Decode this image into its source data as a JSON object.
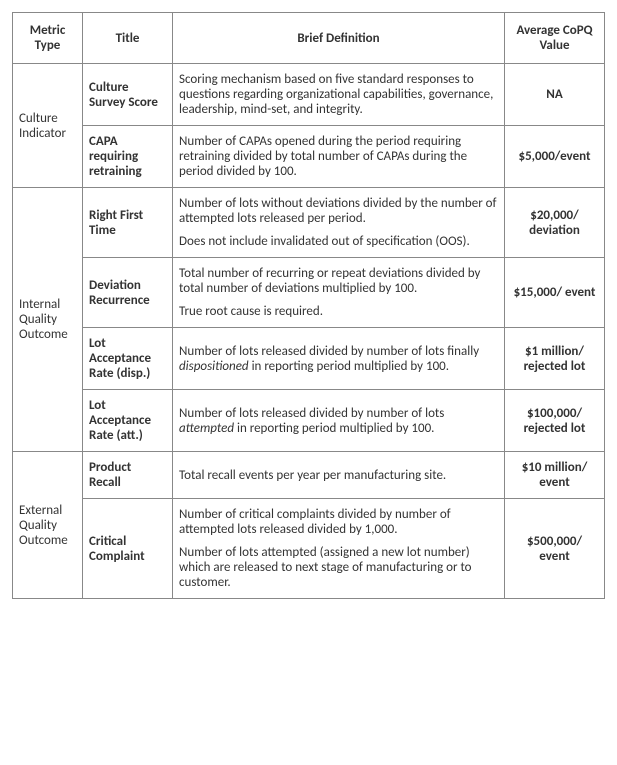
{
  "columns": {
    "metric_type": "Metric Type",
    "title": "Title",
    "brief_definition": "Brief Definition",
    "avg_copq": "Average CoPQ Value"
  },
  "groups": [
    {
      "metric_type": "Culture Indicator",
      "rows": [
        {
          "title": "Culture Survey Score",
          "definition": [
            "Scoring mechanism based on five standard responses to questions regarding organizational capabilities, governance, leadership, mind-set, and integrity."
          ],
          "value": "NA"
        },
        {
          "title": "CAPA requiring retraining",
          "definition": [
            "Number of CAPAs opened during the period requiring retraining divided by total number of CAPAs during the period divided by 100."
          ],
          "value": "$5,000/event"
        }
      ]
    },
    {
      "metric_type": "Internal Quality Outcome",
      "rows": [
        {
          "title": "Right First Time",
          "definition": [
            "Number of lots without deviations divided by the number of attempted lots released per period.",
            "Does not include invalidated out of specification (OOS)."
          ],
          "value": "$20,000/ deviation"
        },
        {
          "title": "Deviation Recurrence",
          "definition": [
            "Total number of recurring or repeat deviations divided by total number of deviations multiplied by 100.",
            "True root cause is required."
          ],
          "value": "$15,000/ event"
        },
        {
          "title": "Lot Acceptance Rate (disp.)",
          "definition_html": "Number of lots released divided by number of lots finally <em class='it'>dispositioned</em> in reporting period multiplied by 100.",
          "value": "$1 million/ rejected lot"
        },
        {
          "title": "Lot Acceptance Rate (att.)",
          "definition_html": "Number of lots released divided by number of lots <em class='it'>attempted</em> in reporting period multiplied by 100.",
          "value": "$100,000/ rejected lot"
        }
      ]
    },
    {
      "metric_type": "External Quality Outcome",
      "rows": [
        {
          "title": "Product Recall",
          "definition": [
            "Total recall events per year per manufacturing site."
          ],
          "value": "$10 million/ event"
        },
        {
          "title": "Critical Complaint",
          "definition": [
            "Number of critical complaints divided by number of attempted lots released divided by 1,000.",
            "Number of lots attempted (assigned a new lot number) which are released to next stage of manufacturing or to customer."
          ],
          "value": "$500,000/ event"
        }
      ]
    }
  ]
}
